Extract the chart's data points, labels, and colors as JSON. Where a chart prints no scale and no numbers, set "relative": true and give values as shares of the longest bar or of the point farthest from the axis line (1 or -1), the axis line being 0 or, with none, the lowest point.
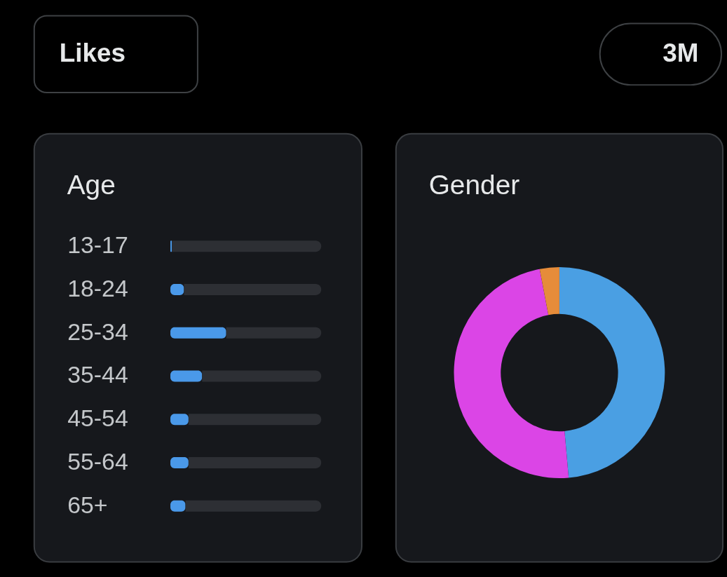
{
  "chart_data": [
    {
      "type": "other",
      "annotations": [
        "Likes",
        "3M"
      ]
    },
    {
      "type": "bar",
      "title": "Age",
      "orientation": "horizontal",
      "relative": true,
      "stacked": true,
      "categories": [
        "13-17",
        "18-24",
        "25-34",
        "35-44",
        "45-54",
        "55-64",
        "65+"
      ],
      "series": [
        {
          "color": "#4a99e9",
          "values": [
            0.01,
            0.09,
            0.37,
            0.21,
            0.12,
            0.12,
            0.1
          ]
        },
        {
          "color": "#2d2f34",
          "values": [
            0.99,
            0.91,
            0.63,
            0.79,
            0.88,
            0.88,
            0.9
          ]
        }
      ]
    },
    {
      "type": "donut",
      "title": "Gender",
      "categories": [
        null,
        null,
        null
      ],
      "values": [
        48.6,
        48.4,
        3
      ],
      "colors": [
        "#4a9fe3",
        "#db45e6",
        "#e68c3a"
      ]
    }
  ]
}
